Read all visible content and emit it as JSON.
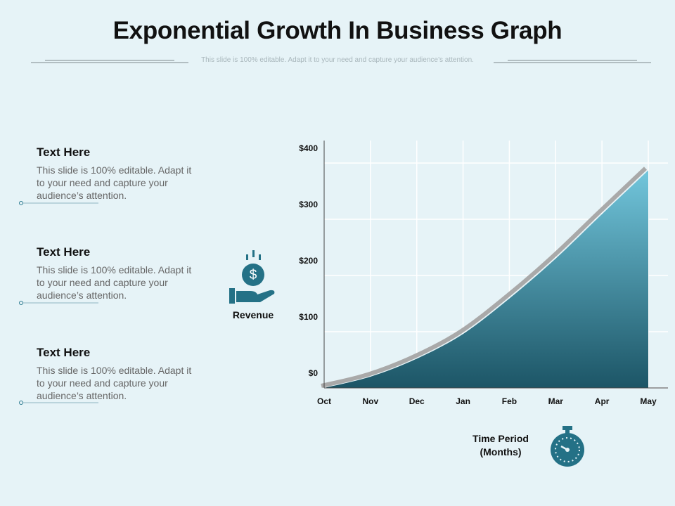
{
  "title": "Exponential Growth In Business Graph",
  "subtitle": "This slide is 100% editable. Adapt it to your need and capture your audience’s attention.",
  "items": [
    {
      "heading": "Text Here",
      "body": "This slide is 100% editable. Adapt it to your need and capture your audience’s attention."
    },
    {
      "heading": "Text Here",
      "body": "This slide is 100% editable. Adapt it to your need and capture your audience’s attention."
    },
    {
      "heading": "Text Here",
      "body": "This slide is 100% editable. Adapt it to your need and capture your audience’s attention."
    }
  ],
  "chart_data": {
    "type": "area",
    "y_label": "Revenue",
    "x_label": "Time Period (Months)",
    "categories": [
      "Oct",
      "Nov",
      "Dec",
      "Jan",
      "Feb",
      "Mar",
      "Apr",
      "May"
    ],
    "series": [
      {
        "values": [
          0,
          20,
          52,
          96,
          159,
          230,
          309,
          387
        ],
        "color": "#1c5566",
        "top_color": "#72c6dc"
      }
    ],
    "ylim": [
      0,
      440
    ],
    "yticks": [
      {
        "value": 0,
        "label": "$0"
      },
      {
        "value": 100,
        "label": "$100"
      },
      {
        "value": 200,
        "label": "$200"
      },
      {
        "value": 300,
        "label": "$300"
      },
      {
        "value": 400,
        "label": "$400"
      }
    ],
    "grid": true
  }
}
